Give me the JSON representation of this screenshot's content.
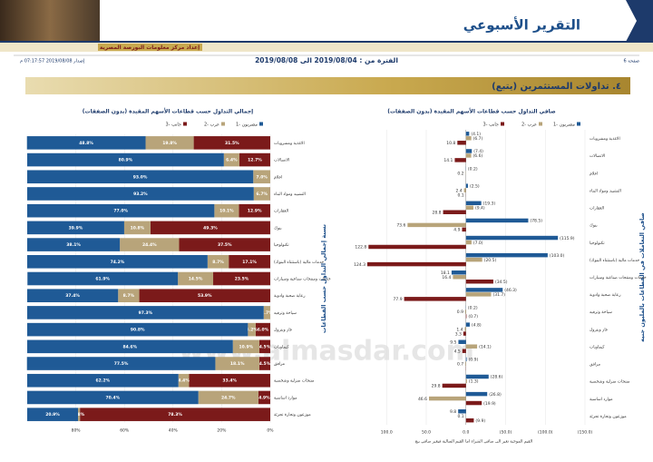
{
  "header": {
    "title": "التقرير الأسبوعي",
    "subtitle": "إعداد مركز معلومات البورصة المصرية",
    "page": "صفحة 6",
    "period": "الفترة من : 2019/08/04 الى 2019/08/08",
    "issued": "إصدار 2019/08/08 07:17:57 م"
  },
  "section": {
    "title": "٤. تداولات المستثمرين (يتبع)"
  },
  "watermark": "www.almasdar.com",
  "chart_data": [
    {
      "type": "bar",
      "orientation": "horizontal",
      "stacked": true,
      "legend": "top",
      "title": "إجمالي التداول حسب قطاعات الأسهم المقيدة (بدون الصفقات)",
      "y_axis_title": "نسبة إجمالي التداول حسب القطاعات",
      "categories": [
        "الاغذية ومشروبات",
        "الاتصالات",
        "اعلام",
        "التشييد ومواد البناء",
        "العقارات",
        "بنوك",
        "تكنولوجيا",
        "خدمات مالية (باستثناء البنوك)",
        "خدمات ومنتجات صناعية وسيارات",
        "رعاية صحية وادوية",
        "سياحة وترفيه",
        "غاز وبترول",
        "كيماويات",
        "مرافق",
        "منتجات منزلية وشخصية",
        "موارد اساسية",
        "موزعون وتجارة تجزئة"
      ],
      "series": [
        {
          "name": "مصريون -1",
          "color": "#1f5a96",
          "values": [
            48.8,
            80.9,
            93.0,
            93.2,
            77.0,
            39.9,
            38.1,
            74.2,
            61.9,
            37.4,
            97.3,
            90.8,
            84.6,
            77.5,
            62.2,
            70.4,
            20.9
          ],
          "value_labels": [
            "48.8%",
            "80.9%",
            "93.0%",
            "93.2%",
            "77.0%",
            "39.9%",
            "38.1%",
            "74.2%",
            "61.9%",
            "37.4%",
            "97.3%",
            "90.8%",
            "84.6%",
            "77.5%",
            "62.2%",
            "70.4%",
            "20.9%"
          ]
        },
        {
          "name": "عرب -2",
          "color": "#b8a47a",
          "values": [
            19.8,
            6.4,
            7.0,
            6.7,
            10.1,
            10.8,
            24.4,
            8.7,
            14.5,
            8.7,
            2.7,
            3.2,
            10.9,
            18.1,
            4.4,
            24.7,
            0.8
          ],
          "value_labels": [
            "19.8%",
            "6.4%",
            "7.0%",
            "6.7%",
            "10.1%",
            "10.8%",
            "24.4%",
            "8.7%",
            "14.5%",
            "8.7%",
            "2.7%",
            "3.2%",
            "10.9%",
            "18.1%",
            "4.4%",
            "24.7%",
            "0.8%"
          ]
        },
        {
          "name": "جانب -3",
          "color": "#7b1a1a",
          "values": [
            31.5,
            12.7,
            0,
            0.1,
            12.9,
            49.3,
            37.5,
            17.1,
            23.5,
            53.9,
            0,
            6.0,
            4.5,
            4.5,
            33.4,
            4.9,
            78.3
          ],
          "value_labels": [
            "31.5%",
            "12.7%",
            null,
            null,
            "12.9%",
            "49.3%",
            "37.5%",
            "17.1%",
            "23.5%",
            "53.9%",
            null,
            "6.0%",
            "4.5%",
            "4.5%",
            "33.4%",
            "4.9%",
            "78.3%"
          ]
        }
      ],
      "xlim": [
        100,
        0
      ],
      "xticks": [
        {
          "value": 80,
          "label": "80%"
        },
        {
          "value": 60,
          "label": "60%"
        },
        {
          "value": 40,
          "label": "40%"
        },
        {
          "value": 20,
          "label": "20%"
        },
        {
          "value": 0,
          "label": "0%"
        }
      ]
    },
    {
      "type": "bar",
      "orientation": "horizontal",
      "stacked": false,
      "legend": "top",
      "title": "صافي التداول حسب قطاعات الأسهم المقيدة (بدون الصفقات)",
      "y_axis_title": "صافي التعاملات في القطاعات بالمليون جنيه",
      "note": "القيم الموجبة تعبر الى صافي الشراء اما القيم السالبة فيعبر صافي بيع",
      "categories": [
        "الاغذية ومشروبات",
        "الاتصالات",
        "اعلام",
        "التشييد ومواد البناء",
        "العقارات",
        "بنوك",
        "تكنولوجيا",
        "خدمات مالية (باستثناء البنوك)",
        "خدمات ومنتجات صناعية وسيارات",
        "رعاية صحية وادوية",
        "سياحة وترفيه",
        "غاز وبترول",
        "كيماويات",
        "مرافق",
        "منتجات منزلية وشخصية",
        "موارد اساسية",
        "موزعون وتجارة تجزئة"
      ],
      "series": [
        {
          "name": "مصريون -1",
          "color": "#1f5a96",
          "values": [
            -4.1,
            -7.4,
            -0.2,
            -2.5,
            -19.3,
            -78.5,
            -115.9,
            -103.0,
            18.1,
            -46.3,
            -0.2,
            -4.8,
            9.5,
            -0.9,
            -28.6,
            -26.8,
            9.8
          ],
          "value_labels": [
            "(4.1)",
            "(7.4)",
            "(0.2)",
            "(2.5)",
            "(19.3)",
            "(78.5)",
            "(115.9)",
            "(103.0)",
            "18.1",
            "(46.3)",
            "(0.2)",
            "(4.8)",
            "9.5",
            "(0.9)",
            "(28.6)",
            "(26.8)",
            "9.8"
          ]
        },
        {
          "name": "عرب -2",
          "color": "#b8a47a",
          "values": [
            -6.7,
            -6.6,
            0.2,
            2.4,
            -9.4,
            73.6,
            -7.0,
            -20.5,
            16.4,
            -31.7,
            0.9,
            1.4,
            -14.1,
            0.7,
            -1.3,
            46.6,
            0.1
          ],
          "value_labels": [
            "(6.7)",
            "(6.6)",
            "0.2",
            "2.4",
            "(9.4)",
            "73.6",
            "(7.0)",
            "(20.5)",
            "16.4",
            "(31.7)",
            "0.9",
            "1.4",
            "(14.1)",
            "0.7",
            "(1.3)",
            "46.6",
            "0.1"
          ]
        },
        {
          "name": "جانب -3",
          "color": "#7b1a1a",
          "values": [
            10.8,
            14.1,
            0,
            0.1,
            28.8,
            4.9,
            122.8,
            124.3,
            -34.5,
            77.9,
            -0.7,
            3.3,
            4.5,
            0.2,
            29.8,
            -19.9,
            -9.9
          ],
          "value_labels": [
            "10.8",
            "14.1",
            null,
            "0.1",
            "28.8",
            "4.9",
            "122.8",
            "124.3",
            "(34.5)",
            "77.9",
            "(0.7)",
            "3.3",
            "4.5",
            null,
            "29.8",
            "(19.9)",
            "(9.9)"
          ]
        }
      ],
      "xlim": [
        130,
        -150
      ],
      "xticks": [
        {
          "value": 100,
          "label": "100.0"
        },
        {
          "value": 50,
          "label": "50.0"
        },
        {
          "value": 0,
          "label": "0.0"
        },
        {
          "value": -50,
          "label": "(50.0)"
        },
        {
          "value": -100,
          "label": "(100.0)"
        },
        {
          "value": -150,
          "label": "(150.0)"
        }
      ]
    }
  ]
}
